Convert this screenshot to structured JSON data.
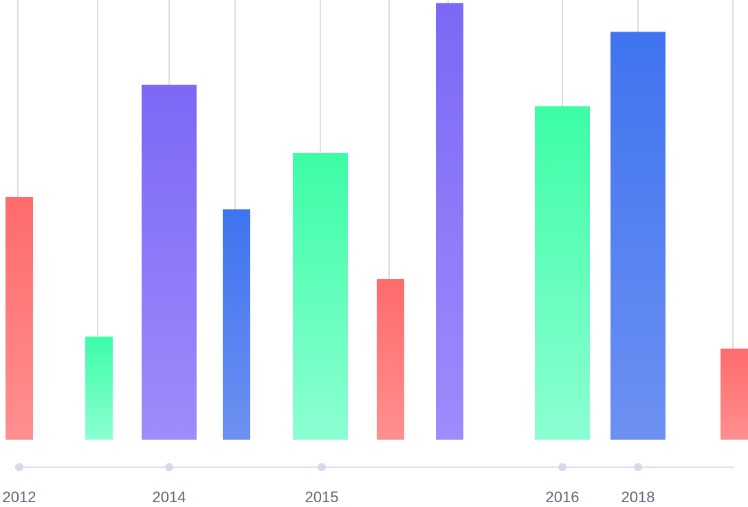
{
  "chart_data": {
    "type": "bar",
    "title": "",
    "xlabel": "",
    "ylabel": "",
    "grid": false,
    "legend": "none",
    "ylim": [
      0,
      580
    ],
    "bars": [
      {
        "value": 320,
        "color": "red"
      },
      {
        "value": 136,
        "color": "green"
      },
      {
        "value": 468,
        "color": "purple"
      },
      {
        "value": 304,
        "color": "blue"
      },
      {
        "value": 378,
        "color": "green"
      },
      {
        "value": 212,
        "color": "red"
      },
      {
        "value": 576,
        "color": "purple"
      },
      {
        "value": 440,
        "color": "green"
      },
      {
        "value": 538,
        "color": "blue"
      },
      {
        "value": 120,
        "color": "red"
      }
    ],
    "timeline_labels": [
      "2012",
      "2014",
      "2015",
      "2016",
      "2018"
    ]
  },
  "colors": {
    "red": {
      "top": "#ff6b6b",
      "bottom": "#ff8f8f"
    },
    "green": {
      "top": "#3cfda6",
      "bottom": "#8cffd2"
    },
    "purple": {
      "top": "#7b68f5",
      "bottom": "#9d8cfc"
    },
    "blue": {
      "top": "#3f74f0",
      "bottom": "#6d90f2"
    },
    "guide_line": "#dcdde1",
    "axis_line": "#dde3ee",
    "axis_dot": "#d3dbe8",
    "label_text": "#5c6778"
  }
}
